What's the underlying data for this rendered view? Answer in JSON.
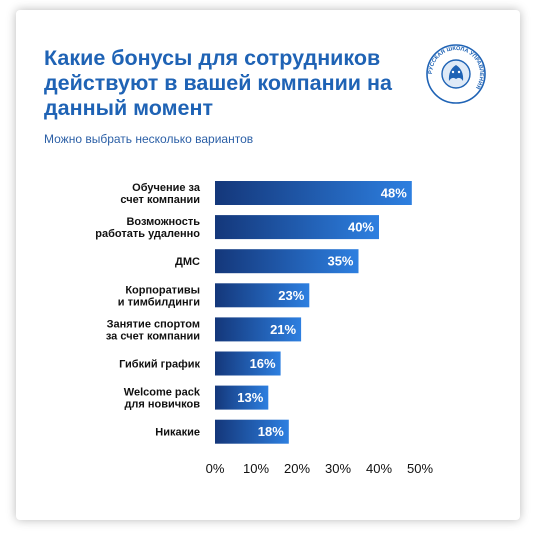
{
  "header": {
    "title": "Какие бонусы для сотрудников действуют в вашей компании на данный момент",
    "subtitle": "Можно выбрать несколько вариантов"
  },
  "logo": {
    "icon": "lion-head-emblem-icon",
    "text": "РУССКАЯ ШКОЛА УПРАВЛЕНИЯ",
    "color": "#1f63b5"
  },
  "colors": {
    "bar_start": "#14377a",
    "bar_end": "#2d7fe0",
    "title": "#1f63b5"
  },
  "chart_data": {
    "type": "bar",
    "orientation": "horizontal",
    "categories": [
      [
        "Обучение за",
        "счет компании"
      ],
      [
        "Возможность",
        "работать удаленно"
      ],
      [
        "ДМС"
      ],
      [
        "Корпоративы",
        "и тимбилдинги"
      ],
      [
        "Занятие спортом",
        "за счет компании"
      ],
      [
        "Гибкий график"
      ],
      [
        "Welcome pack",
        "для новичков"
      ],
      [
        "Никакие"
      ]
    ],
    "values": [
      48,
      40,
      35,
      23,
      21,
      16,
      13,
      18
    ],
    "value_labels": [
      "48%",
      "40%",
      "35%",
      "23%",
      "21%",
      "16%",
      "13%",
      "18%"
    ],
    "xlim": [
      0,
      50
    ],
    "xticks": [
      "0%",
      "10%",
      "20%",
      "30%",
      "40%",
      "50%"
    ],
    "grid": false
  }
}
